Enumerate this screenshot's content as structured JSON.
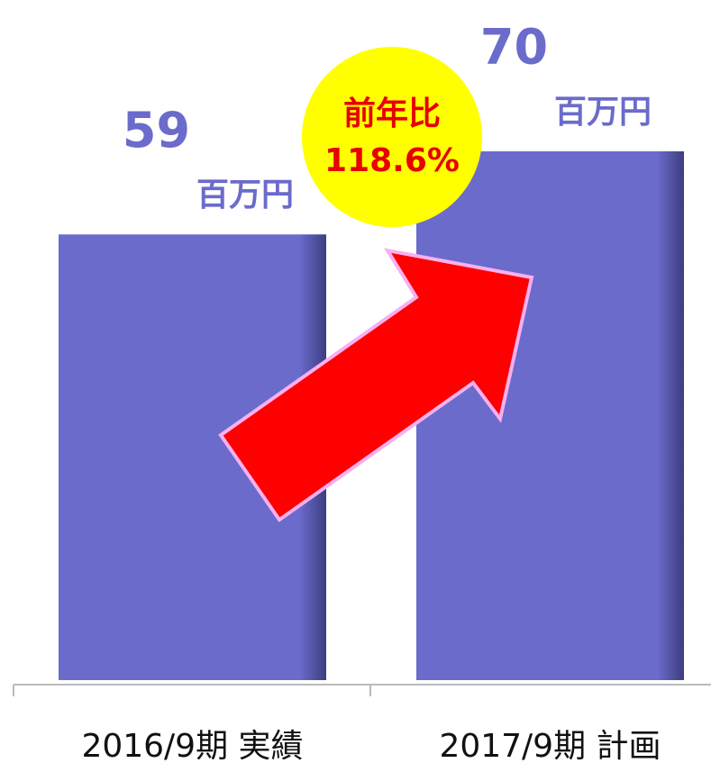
{
  "chart_data": {
    "type": "bar",
    "categories": [
      "2016/9期 実績",
      "2017/9期 計画"
    ],
    "values": [
      59,
      70
    ],
    "unit": "百万円",
    "color": "#6b6bcc",
    "annotation": {
      "title": "前年比",
      "text": "118.6%"
    }
  }
}
